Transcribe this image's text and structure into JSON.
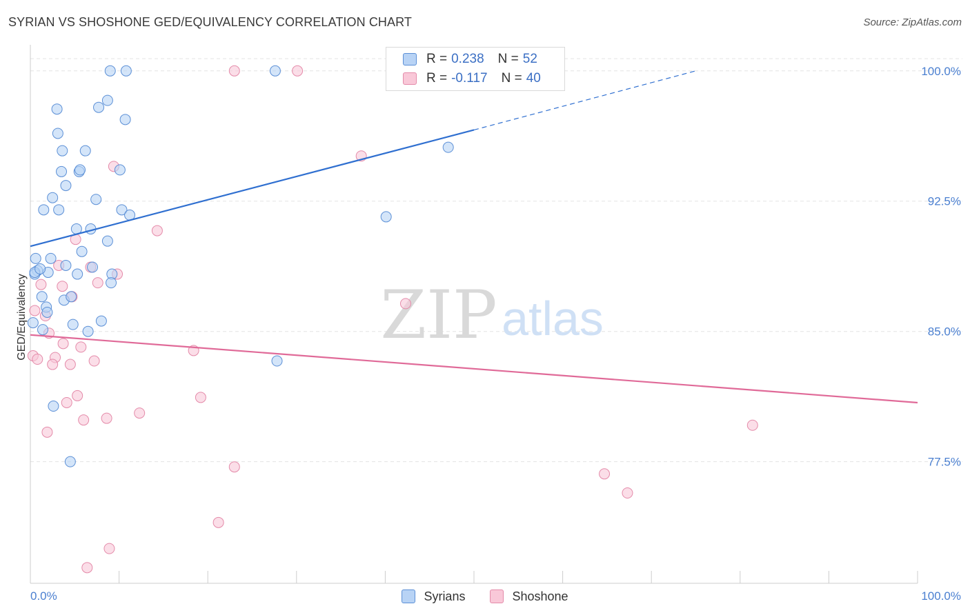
{
  "header": {
    "title": "SYRIAN VS SHOSHONE GED/EQUIVALENCY CORRELATION CHART",
    "source": "Source: ZipAtlas.com"
  },
  "watermark": {
    "zip": "ZIP",
    "atlas": "atlas"
  },
  "colors": {
    "syrian_fill": "#b8d3f5",
    "syrian_stroke": "#5b8fd6",
    "syrian_line": "#2f6fd0",
    "shoshone_fill": "#f9c8d8",
    "shoshone_stroke": "#e48aa9",
    "shoshone_line": "#e06a98",
    "tick_text": "#4a7fd0",
    "grid": "#e3e3e3"
  },
  "legend": {
    "rows": [
      {
        "r_label": "R =",
        "r_value": "0.238",
        "n_label": "N =",
        "n_value": "52"
      },
      {
        "r_label": "R =",
        "r_value": "-0.117",
        "n_label": "N =",
        "n_value": "40"
      }
    ]
  },
  "bottom_legend": {
    "items": [
      "Syrians",
      "Shoshone"
    ]
  },
  "chart_data": {
    "type": "scatter",
    "title": "SYRIAN VS SHOSHONE GED/EQUIVALENCY CORRELATION CHART",
    "xlabel": "",
    "ylabel": "GED/Equivalency",
    "xlim": [
      0,
      100
    ],
    "ylim": [
      70.5,
      101.5
    ],
    "x_tick_labels": [
      "0.0%",
      "100.0%"
    ],
    "y_ticks": [
      77.5,
      85.0,
      92.5,
      100.0
    ],
    "y_tick_labels": [
      "77.5%",
      "85.0%",
      "92.5%",
      "100.0%"
    ],
    "grid": true,
    "series": [
      {
        "name": "Syrians",
        "r": 0.238,
        "n": 52,
        "trend": {
          "x0": 0,
          "y0": 89.9,
          "x1": 50,
          "y1": 96.6,
          "dash_to_x": 75,
          "dash_to_y": 100.0
        },
        "points": [
          [
            9.0,
            100.0
          ],
          [
            10.8,
            100.0
          ],
          [
            27.6,
            100.0
          ],
          [
            8.7,
            98.3
          ],
          [
            3.0,
            97.8
          ],
          [
            7.7,
            97.9
          ],
          [
            10.7,
            97.2
          ],
          [
            3.1,
            96.4
          ],
          [
            3.6,
            95.4
          ],
          [
            6.2,
            95.4
          ],
          [
            47.1,
            95.6
          ],
          [
            3.5,
            94.2
          ],
          [
            5.5,
            94.2
          ],
          [
            5.6,
            94.3
          ],
          [
            10.1,
            94.3
          ],
          [
            4.0,
            93.4
          ],
          [
            2.5,
            92.7
          ],
          [
            7.4,
            92.6
          ],
          [
            1.5,
            92.0
          ],
          [
            3.2,
            92.0
          ],
          [
            10.3,
            92.0
          ],
          [
            11.2,
            91.7
          ],
          [
            40.1,
            91.6
          ],
          [
            5.2,
            90.9
          ],
          [
            6.8,
            90.9
          ],
          [
            8.7,
            90.2
          ],
          [
            5.8,
            89.6
          ],
          [
            0.6,
            89.2
          ],
          [
            2.3,
            89.2
          ],
          [
            0.8,
            88.5
          ],
          [
            2.0,
            88.4
          ],
          [
            0.5,
            88.3
          ],
          [
            4.0,
            88.8
          ],
          [
            5.3,
            88.3
          ],
          [
            7.0,
            88.7
          ],
          [
            9.2,
            88.3
          ],
          [
            9.1,
            87.8
          ],
          [
            1.3,
            87.0
          ],
          [
            3.8,
            86.8
          ],
          [
            4.6,
            87.0
          ],
          [
            1.8,
            86.4
          ],
          [
            1.9,
            86.1
          ],
          [
            0.3,
            85.5
          ],
          [
            1.4,
            85.1
          ],
          [
            4.8,
            85.4
          ],
          [
            8.0,
            85.6
          ],
          [
            6.5,
            85.0
          ],
          [
            27.8,
            83.3
          ],
          [
            2.6,
            80.7
          ],
          [
            4.5,
            77.5
          ],
          [
            0.5,
            88.4
          ],
          [
            1.1,
            88.6
          ]
        ]
      },
      {
        "name": "Shoshone",
        "r": -0.117,
        "n": 40,
        "trend": {
          "x0": 0,
          "y0": 84.8,
          "x1": 100,
          "y1": 80.9
        },
        "points": [
          [
            23.0,
            100.0
          ],
          [
            30.1,
            100.0
          ],
          [
            37.3,
            95.1
          ],
          [
            9.4,
            94.5
          ],
          [
            14.3,
            90.8
          ],
          [
            5.1,
            90.3
          ],
          [
            3.2,
            88.8
          ],
          [
            6.8,
            88.7
          ],
          [
            9.8,
            88.3
          ],
          [
            1.2,
            87.7
          ],
          [
            3.6,
            87.6
          ],
          [
            7.6,
            87.8
          ],
          [
            4.7,
            87.0
          ],
          [
            0.5,
            86.2
          ],
          [
            1.7,
            85.9
          ],
          [
            2.1,
            84.9
          ],
          [
            3.7,
            84.3
          ],
          [
            5.7,
            84.1
          ],
          [
            18.4,
            83.9
          ],
          [
            0.3,
            83.6
          ],
          [
            0.8,
            83.4
          ],
          [
            2.8,
            83.5
          ],
          [
            2.5,
            83.1
          ],
          [
            4.5,
            83.1
          ],
          [
            7.2,
            83.3
          ],
          [
            42.3,
            86.6
          ],
          [
            19.2,
            81.2
          ],
          [
            5.3,
            81.3
          ],
          [
            4.1,
            80.9
          ],
          [
            12.3,
            80.3
          ],
          [
            6.0,
            79.9
          ],
          [
            8.6,
            80.0
          ],
          [
            1.9,
            79.2
          ],
          [
            81.4,
            79.6
          ],
          [
            23.0,
            77.2
          ],
          [
            64.7,
            76.8
          ],
          [
            67.3,
            75.7
          ],
          [
            21.2,
            74.0
          ],
          [
            8.9,
            72.5
          ],
          [
            6.4,
            71.4
          ]
        ]
      }
    ]
  }
}
